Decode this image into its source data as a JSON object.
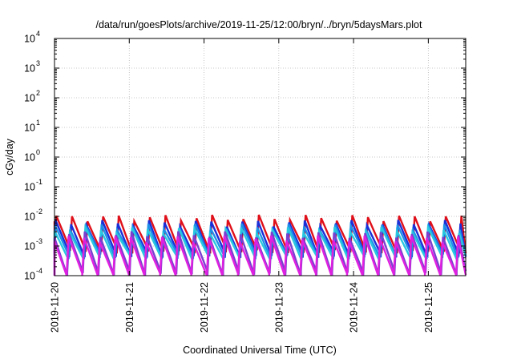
{
  "chart_data": {
    "type": "line",
    "title": "/data/run/goesPlots/archive/2019-11-25/12:00/bryn/../bryn/5daysMars.plot",
    "xlabel": "Coordinated Universal Time (UTC)",
    "ylabel": "cGy/day",
    "yscale": "log",
    "ylim": [
      0.0001,
      10000
    ],
    "xlim": [
      "2019-11-20T00:00",
      "2019-11-25T12:00"
    ],
    "grid": true,
    "xticks": [
      {
        "date": "2019-11-20",
        "label": "2019-11-20"
      },
      {
        "date": "2019-11-21",
        "label": "2019-11-21"
      },
      {
        "date": "2019-11-22",
        "label": "2019-11-22"
      },
      {
        "date": "2019-11-23",
        "label": "2019-11-23"
      },
      {
        "date": "2019-11-24",
        "label": "2019-11-24"
      },
      {
        "date": "2019-11-25",
        "label": "2019-11-25"
      }
    ],
    "yticks": [
      {
        "value": 0.0001,
        "base": "10",
        "exp": "-4"
      },
      {
        "value": 0.001,
        "base": "10",
        "exp": "-3"
      },
      {
        "value": 0.01,
        "base": "10",
        "exp": "-2"
      },
      {
        "value": 0.1,
        "base": "10",
        "exp": "-1"
      },
      {
        "value": 1,
        "base": "10",
        "exp": "0"
      },
      {
        "value": 10,
        "base": "10",
        "exp": "1"
      },
      {
        "value": 100,
        "base": "10",
        "exp": "2"
      },
      {
        "value": 1000,
        "base": "10",
        "exp": "3"
      },
      {
        "value": 10000,
        "base": "10",
        "exp": "4"
      }
    ],
    "sawtooth_period_hours": 5,
    "series": [
      {
        "color": "#e0101a",
        "peak": 0.009,
        "trough": 0.0007,
        "phase_hours": 0.0
      },
      {
        "color": "#1a2fd8",
        "peak": 0.006,
        "trough": 0.0005,
        "phase_hours": 0.3
      },
      {
        "color": "#1e90e8",
        "peak": 0.0045,
        "trough": 0.00045,
        "phase_hours": 0.5
      },
      {
        "color": "#29c8e0",
        "peak": 0.0035,
        "trough": 0.0004,
        "phase_hours": 0.7
      },
      {
        "color": "#7b3fd0",
        "peak": 0.0025,
        "trough": 0.00012,
        "phase_hours": 0.9
      },
      {
        "color": "#e020e0",
        "peak": 0.0018,
        "trough": 0.0001,
        "phase_hours": 1.1
      }
    ]
  }
}
